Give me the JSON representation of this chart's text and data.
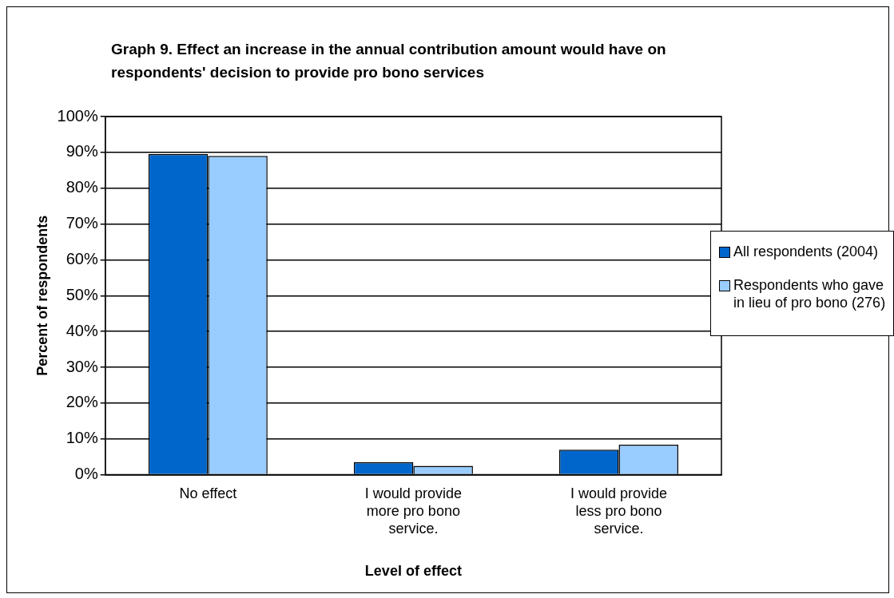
{
  "chart_data": {
    "type": "bar",
    "title": "Graph 9.  Effect an increase in the annual contribution amount would have on respondents' decision to provide pro bono services",
    "xlabel": "Level of effect",
    "ylabel": "Percent of respondents",
    "categories": [
      "No effect",
      "I would provide more pro bono service.",
      "I would provide less pro bono service."
    ],
    "series": [
      {
        "name": "All respondents (2004)",
        "color": "#0066cc",
        "values": [
          89.5,
          3.5,
          7
        ]
      },
      {
        "name": "Respondents who gave in lieu of pro bono (276)",
        "color": "#99ccff",
        "values": [
          89,
          2.5,
          8.4
        ]
      }
    ],
    "ylim": [
      0,
      100
    ],
    "yticks": [
      {
        "value": 0,
        "label": "0%"
      },
      {
        "value": 10,
        "label": "10%"
      },
      {
        "value": 20,
        "label": "20%"
      },
      {
        "value": 30,
        "label": "30%"
      },
      {
        "value": 40,
        "label": "40%"
      },
      {
        "value": 50,
        "label": "50%"
      },
      {
        "value": 60,
        "label": "60%"
      },
      {
        "value": 70,
        "label": "70%"
      },
      {
        "value": 80,
        "label": "80%"
      },
      {
        "value": 90,
        "label": "90%"
      },
      {
        "value": 100,
        "label": "100%"
      }
    ],
    "grid": "y",
    "legend": "right"
  }
}
